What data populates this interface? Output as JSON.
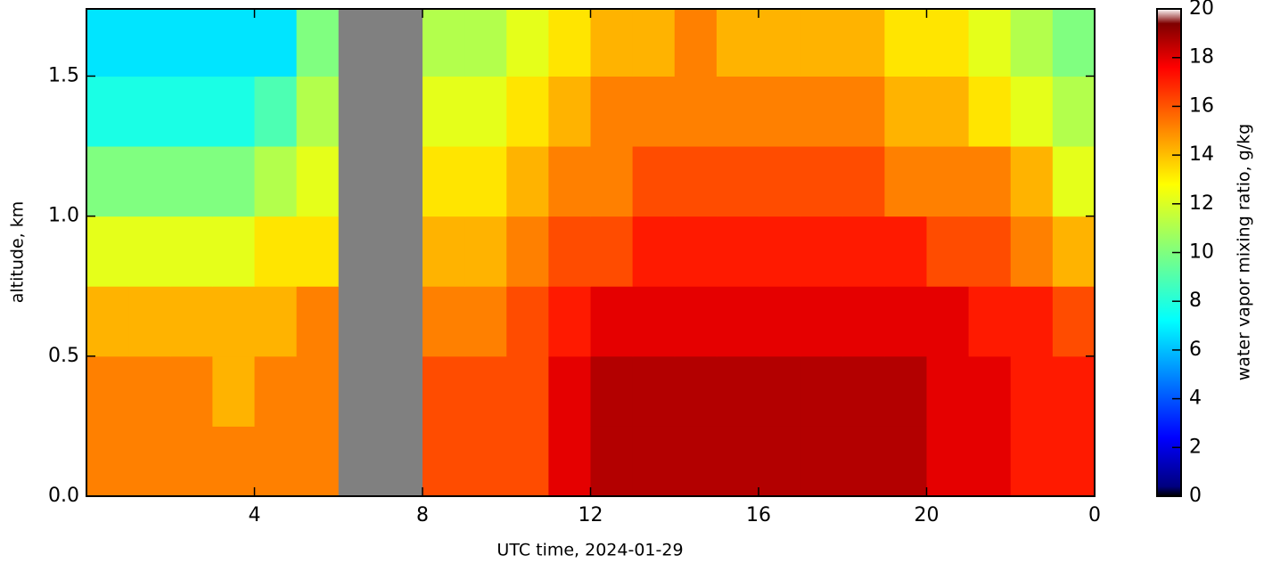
{
  "chart_data": {
    "type": "heatmap",
    "x_label": "UTC time,  2024-01-29",
    "y_label": "altitude, km",
    "colorbar_label": "water vapor mixing ratio, g/kg",
    "colormap": "jet",
    "missing_color": "#808080",
    "x": [
      0,
      1,
      2,
      3,
      4,
      5,
      6,
      7,
      8,
      9,
      10,
      11,
      12,
      13,
      14,
      15,
      16,
      17,
      18,
      19,
      20,
      21,
      22,
      23,
      24
    ],
    "y": [
      0,
      0.25,
      0.5,
      0.75,
      1.0,
      1.25,
      1.5,
      1.74
    ],
    "z": [
      [
        15,
        15,
        15,
        15,
        15,
        15,
        null,
        null,
        16,
        16,
        16,
        18,
        19,
        19,
        19,
        19,
        19,
        19,
        19,
        19,
        18,
        18,
        17,
        17
      ],
      [
        15,
        15,
        15,
        14,
        15,
        15,
        null,
        null,
        16,
        16,
        16,
        18,
        19,
        19,
        19,
        19,
        19,
        19,
        19,
        19,
        18,
        18,
        17,
        17
      ],
      [
        14,
        14,
        14,
        14,
        14,
        15,
        null,
        null,
        15,
        15,
        16,
        17,
        18,
        18,
        18,
        18,
        18,
        18,
        18,
        18,
        18,
        17,
        17,
        16
      ],
      [
        12,
        12,
        12,
        12,
        13,
        13,
        null,
        null,
        14,
        14,
        15,
        16,
        16,
        17,
        17,
        17,
        17,
        17,
        17,
        17,
        16,
        16,
        15,
        14
      ],
      [
        10,
        10,
        10,
        10,
        11,
        12,
        null,
        null,
        13,
        13,
        14,
        15,
        15,
        16,
        16,
        16,
        16,
        16,
        16,
        15,
        15,
        15,
        14,
        12
      ],
      [
        8,
        8,
        8,
        8,
        9,
        11,
        null,
        null,
        12,
        12,
        13,
        14,
        15,
        15,
        15,
        15,
        15,
        15,
        15,
        14,
        14,
        13,
        12,
        11
      ],
      [
        7,
        7,
        7,
        7,
        7,
        10,
        null,
        null,
        11,
        11,
        12,
        13,
        14,
        14,
        15,
        14,
        14,
        14,
        14,
        13,
        13,
        12,
        11,
        10
      ]
    ],
    "xlim": [
      0,
      24
    ],
    "ylim": [
      0,
      1.74
    ],
    "xticks": [
      4,
      8,
      12,
      16,
      20,
      {
        "value": 24,
        "label": "0"
      }
    ],
    "yticks": [
      {
        "value": 0,
        "label": "0.0"
      },
      {
        "value": 0.5,
        "label": "0.5"
      },
      {
        "value": 1.0,
        "label": "1.0"
      },
      {
        "value": 1.5,
        "label": "1.5"
      }
    ],
    "clim": [
      0,
      20
    ],
    "cticks": [
      0,
      2,
      4,
      6,
      8,
      10,
      12,
      14,
      16,
      18,
      20
    ]
  }
}
